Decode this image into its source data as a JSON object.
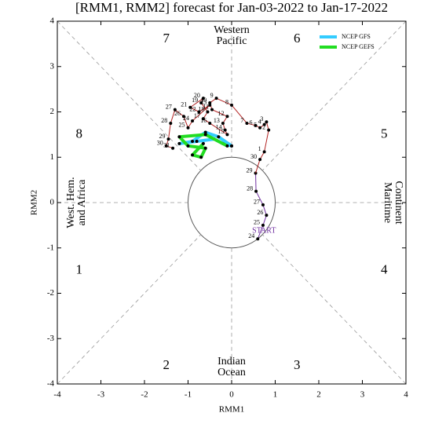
{
  "chart_data": {
    "type": "line",
    "title": "[RMM1, RMM2] forecast for Jan-03-2022 to Jan-17-2022",
    "x_label": "RMM1",
    "y_label": "RMM2",
    "xlim": [
      -4,
      4
    ],
    "ylim": [
      -4,
      4
    ],
    "xticks": [
      -4,
      -3,
      -2,
      -1,
      0,
      1,
      2,
      3,
      4
    ],
    "yticks": [
      -4,
      -3,
      -2,
      -1,
      0,
      1,
      2,
      3,
      4
    ],
    "phase_labels": [
      "1",
      "2",
      "3",
      "4",
      "5",
      "6",
      "7",
      "8"
    ],
    "regions": {
      "top": [
        "Western",
        "Pacific"
      ],
      "bottom": [
        "Indian",
        "Ocean"
      ],
      "left": [
        "West. Hem.",
        "and Africa"
      ],
      "right": [
        "Maritime",
        "Continent"
      ]
    },
    "start_label": "START",
    "legend": "upper right",
    "series": [
      {
        "color": "#7030a0",
        "x": [
          0.6,
          0.72,
          0.8,
          0.72,
          0.56,
          0.55
        ],
        "values": [
          -0.8,
          -0.5,
          -0.28,
          -0.05,
          0.25,
          0.65
        ],
        "labels": [
          "24",
          "25",
          "26",
          "27",
          "28",
          "29"
        ]
      },
      {
        "color": "#b22222",
        "x": [
          0.65,
          0.75,
          0.85,
          0.8,
          0.75,
          0.65,
          0.55,
          0.35,
          0.0,
          -0.35,
          -0.5,
          -0.45,
          -0.1,
          -0.2,
          -0.15,
          -0.1,
          -0.5,
          -0.65,
          -0.55,
          -0.7,
          -0.65,
          -0.95,
          -0.75,
          -0.5,
          -0.9,
          -1.0,
          -1.1,
          -1.3,
          -1.4,
          -1.45,
          -1.5,
          -1.35
        ],
        "values": [
          0.95,
          1.12,
          1.6,
          1.78,
          1.72,
          1.65,
          1.7,
          1.75,
          2.15,
          2.3,
          2.2,
          2.05,
          1.9,
          1.75,
          1.6,
          1.5,
          1.75,
          1.85,
          2.0,
          2.2,
          2.3,
          2.1,
          2.0,
          2.15,
          1.8,
          1.65,
          1.9,
          2.05,
          1.75,
          1.4,
          1.25,
          1.2
        ],
        "labels": [
          "30",
          "1",
          "2",
          "3",
          "4",
          "5",
          "6",
          "7",
          "8",
          "9",
          "10",
          "11",
          "12",
          "13",
          "14",
          "15",
          "16",
          "17",
          "18",
          "19",
          "20",
          "21",
          "22",
          "23",
          "24",
          "25",
          "26",
          "27",
          "28",
          "29",
          "30",
          "31"
        ]
      },
      {
        "name": "NCEP GFS",
        "color": "#33ccff",
        "forecast": true,
        "x": [
          0.0,
          -0.3,
          -0.6,
          -0.9,
          -1.2,
          -0.8,
          -0.4,
          -0.2,
          0.0
        ],
        "values": [
          1.25,
          1.45,
          1.55,
          1.35,
          1.3,
          1.35,
          1.4,
          1.3,
          1.25
        ]
      },
      {
        "name": "NCEP GEFS",
        "color": "#22dd22",
        "forecast": true,
        "x": [
          -0.1,
          -0.6,
          -1.2,
          -1.0,
          -0.6,
          -0.7,
          -0.9,
          -0.65
        ],
        "values": [
          1.25,
          1.5,
          1.45,
          1.25,
          1.2,
          1.0,
          1.05,
          1.3
        ]
      }
    ]
  }
}
